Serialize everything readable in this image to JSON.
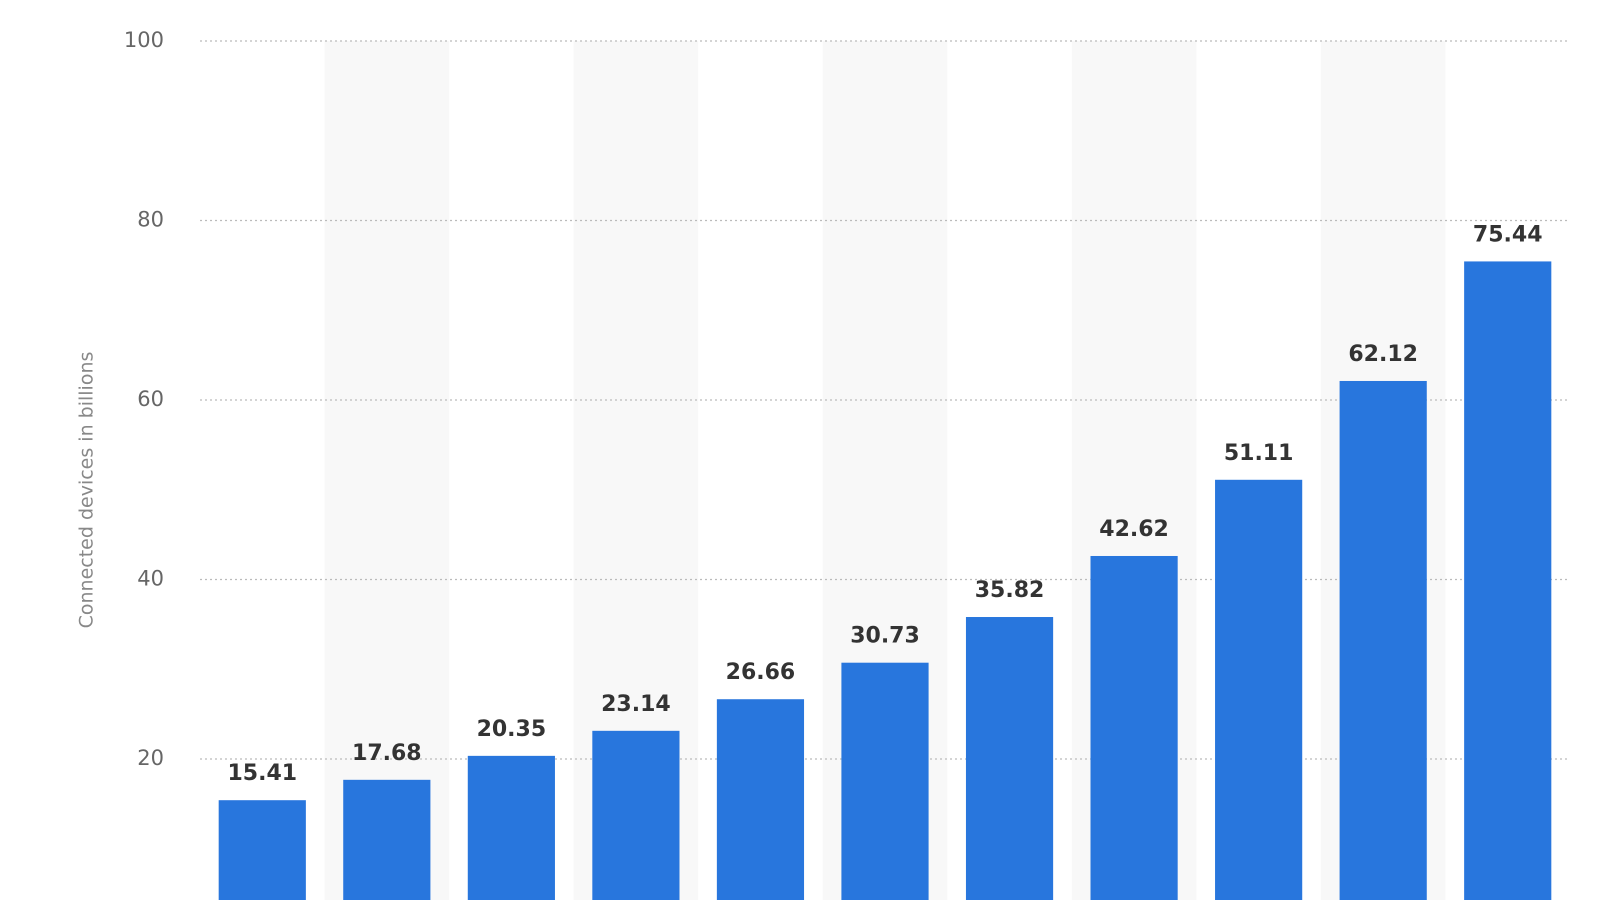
{
  "chart_data": {
    "type": "bar",
    "y_label": "Connected devices in billions",
    "categories": [
      null,
      null,
      null,
      null,
      null,
      null,
      null,
      null,
      null,
      null,
      null
    ],
    "values": [
      15.41,
      17.68,
      20.35,
      23.14,
      26.66,
      30.73,
      35.82,
      42.62,
      51.11,
      62.12,
      75.44
    ],
    "color": "#2876dd",
    "ylim": [
      0,
      100
    ],
    "yticks": [
      20,
      40,
      60,
      80,
      100
    ],
    "grid": true,
    "data_labels": true
  }
}
